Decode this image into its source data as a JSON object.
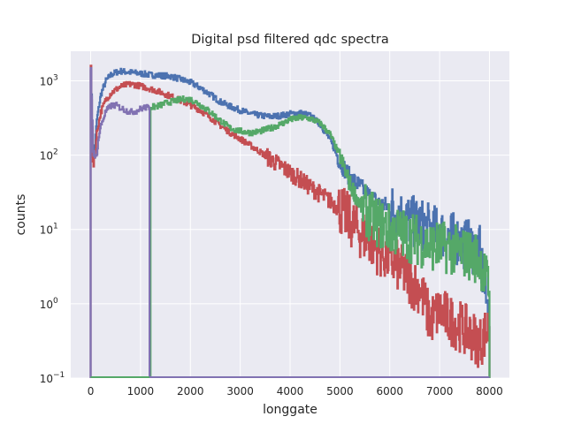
{
  "chart_data": {
    "type": "line",
    "title": "Digital psd filtered qdc spectra",
    "xlabel": "longgate",
    "ylabel": "counts",
    "xlim": [
      -400,
      8400
    ],
    "ylim": [
      0.1,
      2500
    ],
    "yscale": "log",
    "xticks": [
      0,
      1000,
      2000,
      3000,
      4000,
      5000,
      6000,
      7000,
      8000
    ],
    "xtick_labels": [
      "0",
      "1000",
      "2000",
      "3000",
      "4000",
      "5000",
      "6000",
      "7000",
      "8000"
    ],
    "yticks": [
      0.1,
      1,
      10,
      100,
      1000
    ],
    "ytick_base": "10",
    "ytick_exponents": [
      "−1",
      "0",
      "1",
      "2",
      "3"
    ],
    "grid": true,
    "style": "darkgrid",
    "colors": {
      "background": "#eaeaf2",
      "grid": "#ffffff"
    },
    "series": [
      {
        "color": "#4c72b0",
        "x": [
          0,
          40,
          80,
          120,
          200,
          300,
          400,
          500,
          600,
          700,
          800,
          1000,
          1200,
          1400,
          1600,
          1800,
          2000,
          2200,
          2400,
          2600,
          2800,
          3000,
          3200,
          3400,
          3600,
          3800,
          4000,
          4200,
          4400,
          4600,
          4800,
          5000,
          5200,
          5400,
          5600,
          5800,
          6000,
          6200,
          6400,
          6600,
          6800,
          7000,
          7200,
          7400,
          7600,
          7800,
          8000
        ],
        "y": [
          1500,
          100,
          140,
          300,
          650,
          1000,
          1200,
          1300,
          1350,
          1320,
          1300,
          1250,
          1200,
          1180,
          1150,
          1050,
          950,
          800,
          650,
          520,
          450,
          400,
          360,
          340,
          330,
          340,
          360,
          370,
          340,
          260,
          160,
          80,
          50,
          38,
          28,
          22,
          20,
          16,
          13,
          12,
          10,
          9,
          8,
          7,
          6,
          5,
          0.5
        ]
      },
      {
        "color": "#c44e52",
        "x": [
          0,
          40,
          80,
          120,
          200,
          300,
          400,
          500,
          600,
          700,
          800,
          900,
          1000,
          1200,
          1400,
          1600,
          1800,
          2000,
          2200,
          2400,
          2600,
          2800,
          3000,
          3200,
          3400,
          3600,
          3800,
          4000,
          4200,
          4400,
          4600,
          4800,
          5000,
          5200,
          5400,
          5600,
          5800,
          6000,
          6200,
          6400,
          6600,
          6800,
          7000,
          7200,
          7400,
          7600,
          7800,
          8000
        ],
        "y": [
          1500,
          80,
          100,
          200,
          380,
          560,
          680,
          760,
          840,
          880,
          900,
          880,
          850,
          780,
          700,
          620,
          540,
          470,
          400,
          320,
          250,
          200,
          165,
          135,
          110,
          88,
          72,
          58,
          47,
          37,
          30,
          24,
          19,
          13,
          9,
          7,
          5,
          4,
          3,
          2,
          1.6,
          0.6,
          0.8,
          0.6,
          0.5,
          0.4,
          0.3,
          0.5
        ]
      },
      {
        "color": "#55a868",
        "x": [
          1200,
          1300,
          1400,
          1500,
          1600,
          1700,
          1800,
          1900,
          2000,
          2100,
          2200,
          2400,
          2600,
          2800,
          3000,
          3200,
          3400,
          3600,
          3800,
          4000,
          4200,
          4400,
          4600,
          4800,
          5000,
          5200,
          5400,
          5600,
          5800,
          6000,
          6200,
          6400,
          6600,
          6800,
          7000,
          7200,
          7400,
          7600,
          7800,
          8000
        ],
        "y": [
          440,
          450,
          470,
          500,
          520,
          540,
          560,
          570,
          560,
          520,
          470,
          380,
          290,
          230,
          210,
          200,
          210,
          230,
          260,
          300,
          320,
          310,
          270,
          190,
          95,
          40,
          22,
          15,
          12,
          10,
          9,
          8,
          7,
          6,
          6,
          5.5,
          5,
          4.5,
          4,
          1.5
        ]
      },
      {
        "color": "#8172b2",
        "x": [
          0,
          40,
          80,
          120,
          160,
          200,
          300,
          400,
          500,
          600,
          700,
          800,
          900,
          1000,
          1100,
          1150,
          1180
        ],
        "y": [
          1500,
          120,
          80,
          110,
          180,
          250,
          390,
          460,
          470,
          430,
          400,
          380,
          390,
          420,
          440,
          430,
          440
        ]
      }
    ]
  }
}
